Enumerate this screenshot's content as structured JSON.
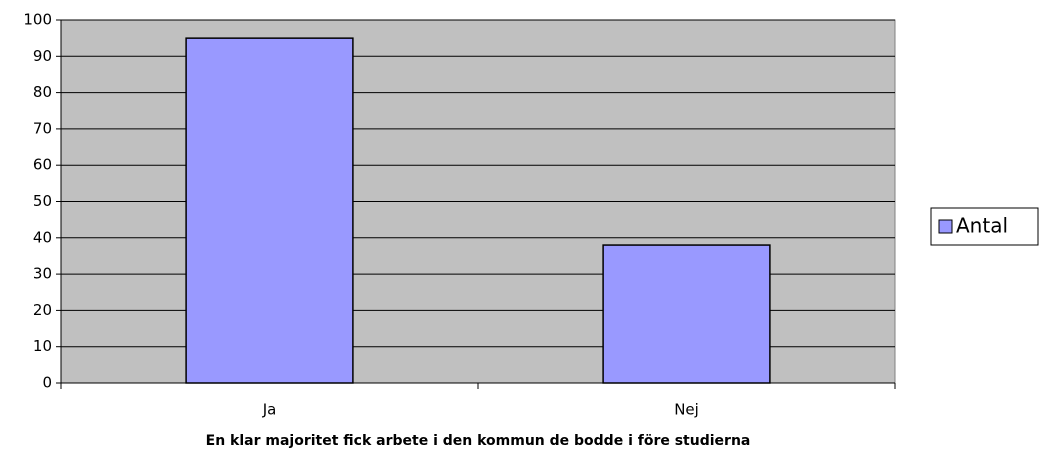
{
  "chart_data": {
    "type": "bar",
    "categories": [
      "Ja",
      "Nej"
    ],
    "series": [
      {
        "name": "Antal",
        "color": "#9999ff",
        "values": [
          95,
          38
        ]
      }
    ],
    "xlabel": "En klar majoritet fick arbete i den kommun de bodde i före studierna",
    "ylim": [
      0,
      100
    ],
    "yticks": [
      0,
      10,
      20,
      30,
      40,
      50,
      60,
      70,
      80,
      90,
      100
    ],
    "grid": true,
    "legend": "right",
    "plot_background": "#c0c0c0"
  }
}
